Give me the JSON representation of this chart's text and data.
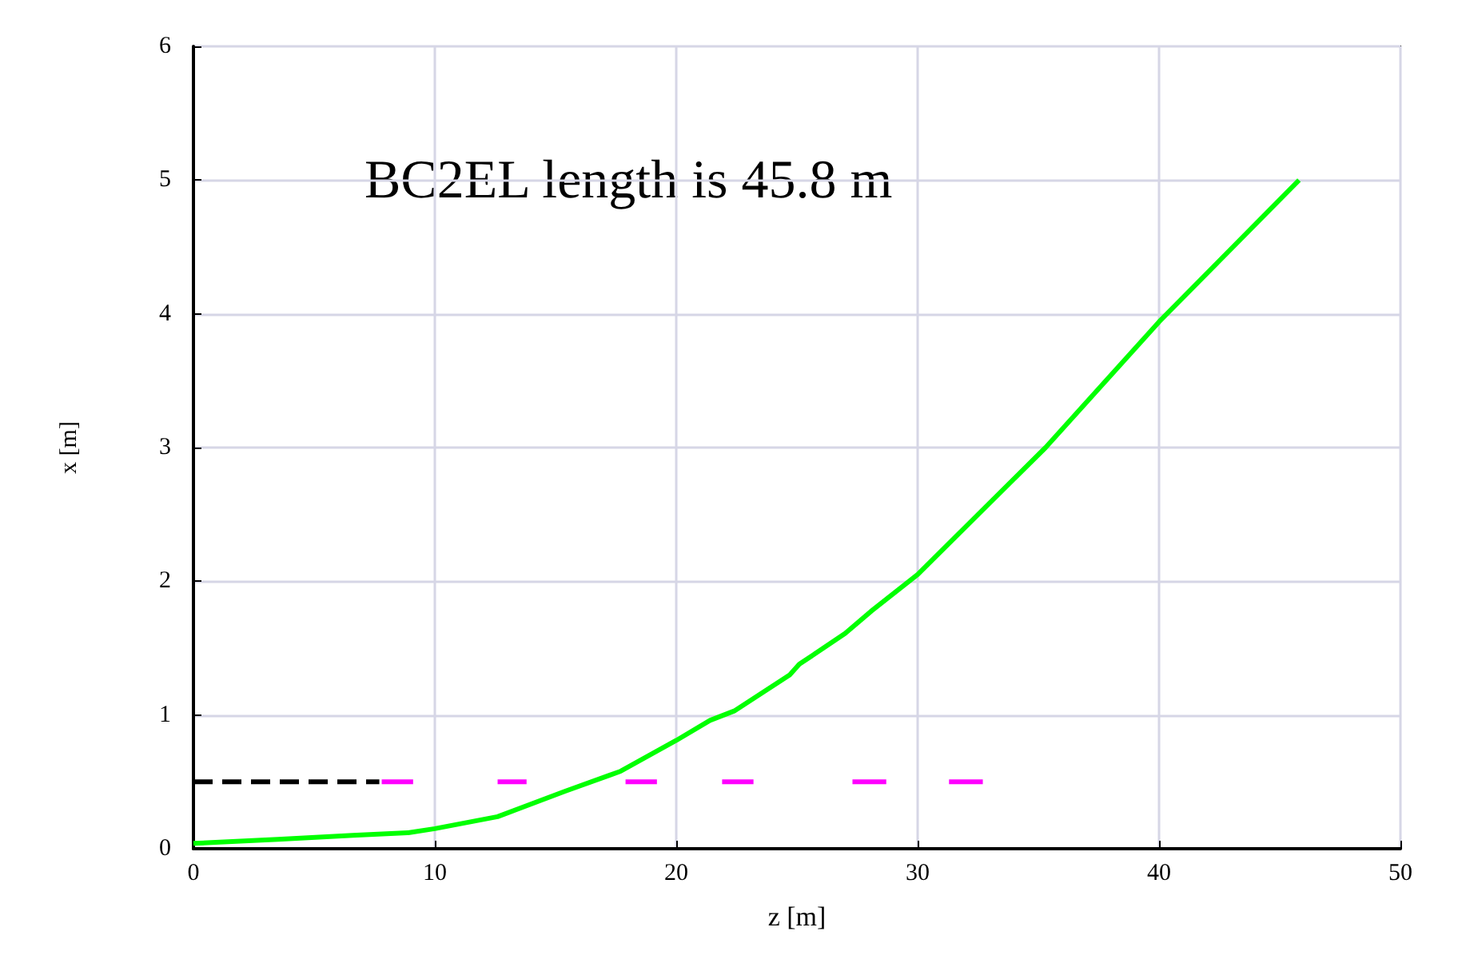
{
  "chart_data": {
    "type": "line",
    "xlabel": "z [m]",
    "ylabel": "x [m]",
    "annotations": [
      "BC2EL length is 45.8 m"
    ],
    "xlim": [
      0,
      50
    ],
    "xticks": [
      0,
      10,
      20,
      30,
      40,
      50
    ],
    "ylim": [
      0,
      6
    ],
    "yticks": [
      0,
      1,
      2,
      3,
      4,
      5,
      6
    ],
    "grid": true,
    "marker": "none",
    "series": [
      {
        "color": "#00ff00",
        "line_style": "solid",
        "x": [
          0,
          3.5,
          6.6,
          8.9,
          10,
          12.6,
          15.4,
          17.7,
          20,
          21.4,
          22.4,
          24.7,
          25.1,
          27,
          28.1,
          30,
          35.3,
          40,
          45.8
        ],
        "values": [
          0.04,
          0.07,
          0.1,
          0.12,
          0.15,
          0.24,
          0.43,
          0.58,
          0.81,
          0.96,
          1.03,
          1.3,
          1.38,
          1.61,
          1.78,
          2.05,
          3,
          3.94,
          5.0
        ]
      },
      {
        "color": "#000000",
        "line_style": "dashed",
        "x": [
          0,
          7.7
        ],
        "values": [
          0.5,
          0.5
        ]
      },
      {
        "color": "#ff00ff",
        "line_style": "solid",
        "x": [
          7.8,
          9.1,
          10.8,
          12.6,
          13.8,
          15.8,
          17.9,
          19.2,
          20.5,
          21.9,
          23.2,
          25.2,
          27.3,
          28.7,
          30,
          31.3,
          32.7
        ],
        "values": [
          0.5,
          0.5,
          null,
          0.5,
          0.5,
          null,
          0.5,
          0.5,
          null,
          0.5,
          0.5,
          null,
          0.5,
          0.5,
          null,
          0.5,
          0.5
        ]
      }
    ]
  }
}
